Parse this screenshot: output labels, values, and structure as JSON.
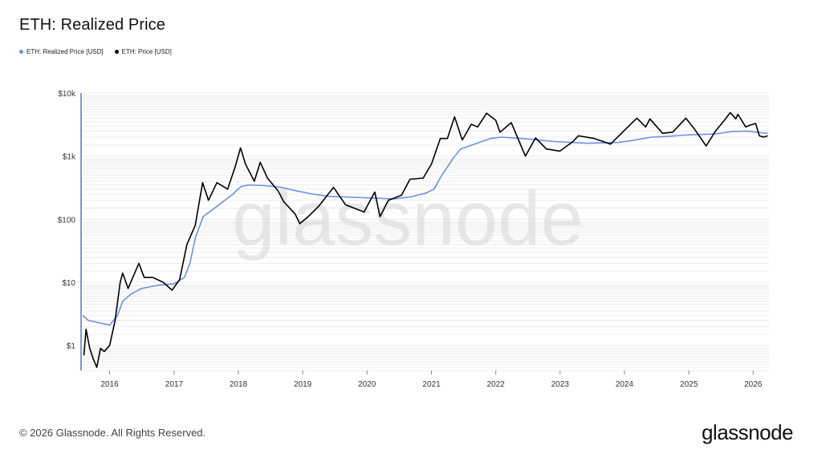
{
  "chart_data": {
    "type": "line",
    "title": "ETH: Realized Price",
    "y_scale": "log",
    "ylim": [
      0.4,
      10000
    ],
    "y_ticks": [
      {
        "value": 1,
        "label": "$1"
      },
      {
        "value": 10,
        "label": "$10"
      },
      {
        "value": 100,
        "label": "$100"
      },
      {
        "value": 1000,
        "label": "$1k"
      },
      {
        "value": 10000,
        "label": "$10k"
      }
    ],
    "xlim": [
      "2015-08-01",
      "2026-04-01"
    ],
    "x_ticks": [
      "2016",
      "2017",
      "2018",
      "2019",
      "2020",
      "2021",
      "2022",
      "2023",
      "2024",
      "2025",
      "2026"
    ],
    "grid": true,
    "legend_position": "top-left",
    "series": [
      {
        "name": "ETH: Realized Price [USD]",
        "color": "#6f8fe0",
        "points": [
          [
            "2015-08-01",
            3.0
          ],
          [
            "2015-09-01",
            2.5
          ],
          [
            "2015-12-01",
            2.2
          ],
          [
            "2016-01-01",
            2.1
          ],
          [
            "2016-02-15",
            3.0
          ],
          [
            "2016-03-15",
            5.0
          ],
          [
            "2016-05-01",
            6.5
          ],
          [
            "2016-07-01",
            8.0
          ],
          [
            "2016-10-01",
            9.0
          ],
          [
            "2017-01-01",
            9.5
          ],
          [
            "2017-03-01",
            12
          ],
          [
            "2017-04-01",
            20
          ],
          [
            "2017-05-01",
            50
          ],
          [
            "2017-06-15",
            110
          ],
          [
            "2017-09-01",
            160
          ],
          [
            "2017-12-01",
            250
          ],
          [
            "2018-01-15",
            330
          ],
          [
            "2018-03-01",
            350
          ],
          [
            "2018-06-01",
            340
          ],
          [
            "2018-09-01",
            320
          ],
          [
            "2018-12-01",
            280
          ],
          [
            "2019-03-01",
            250
          ],
          [
            "2019-06-01",
            230
          ],
          [
            "2019-09-01",
            225
          ],
          [
            "2019-12-01",
            220
          ],
          [
            "2020-03-01",
            215
          ],
          [
            "2020-06-01",
            210
          ],
          [
            "2020-09-01",
            225
          ],
          [
            "2020-12-01",
            260
          ],
          [
            "2021-01-15",
            300
          ],
          [
            "2021-03-01",
            500
          ],
          [
            "2021-05-01",
            900
          ],
          [
            "2021-06-15",
            1300
          ],
          [
            "2021-09-01",
            1550
          ],
          [
            "2021-12-01",
            1900
          ],
          [
            "2022-02-01",
            2000
          ],
          [
            "2022-06-01",
            1900
          ],
          [
            "2022-09-01",
            1800
          ],
          [
            "2022-12-01",
            1700
          ],
          [
            "2023-06-01",
            1600
          ],
          [
            "2023-12-01",
            1650
          ],
          [
            "2024-03-01",
            1800
          ],
          [
            "2024-06-01",
            2000
          ],
          [
            "2024-09-01",
            2050
          ],
          [
            "2024-12-01",
            2150
          ],
          [
            "2025-03-01",
            2200
          ],
          [
            "2025-06-01",
            2250
          ],
          [
            "2025-09-01",
            2450
          ],
          [
            "2025-12-01",
            2500
          ],
          [
            "2026-02-15",
            2350
          ],
          [
            "2026-03-25",
            2300
          ]
        ]
      },
      {
        "name": "ETH: Price [USD]",
        "color": "#000000",
        "points": [
          [
            "2015-08-08",
            0.7
          ],
          [
            "2015-08-20",
            1.8
          ],
          [
            "2015-09-10",
            0.9
          ],
          [
            "2015-10-01",
            0.6
          ],
          [
            "2015-10-20",
            0.45
          ],
          [
            "2015-11-10",
            0.9
          ],
          [
            "2015-12-01",
            0.8
          ],
          [
            "2016-01-01",
            1.0
          ],
          [
            "2016-02-01",
            2.5
          ],
          [
            "2016-03-01",
            10
          ],
          [
            "2016-03-15",
            14
          ],
          [
            "2016-04-15",
            8
          ],
          [
            "2016-06-15",
            20
          ],
          [
            "2016-07-15",
            12
          ],
          [
            "2016-09-01",
            12
          ],
          [
            "2016-11-01",
            10
          ],
          [
            "2016-12-20",
            7.5
          ],
          [
            "2017-02-01",
            11
          ],
          [
            "2017-03-15",
            40
          ],
          [
            "2017-05-01",
            80
          ],
          [
            "2017-06-12",
            380
          ],
          [
            "2017-07-15",
            200
          ],
          [
            "2017-09-01",
            380
          ],
          [
            "2017-11-01",
            300
          ],
          [
            "2017-12-15",
            700
          ],
          [
            "2018-01-13",
            1350
          ],
          [
            "2018-02-10",
            750
          ],
          [
            "2018-04-01",
            400
          ],
          [
            "2018-05-05",
            800
          ],
          [
            "2018-06-15",
            450
          ],
          [
            "2018-08-15",
            280
          ],
          [
            "2018-09-15",
            190
          ],
          [
            "2018-11-20",
            120
          ],
          [
            "2018-12-15",
            85
          ],
          [
            "2019-02-01",
            110
          ],
          [
            "2019-04-01",
            160
          ],
          [
            "2019-06-25",
            320
          ],
          [
            "2019-09-01",
            170
          ],
          [
            "2019-12-15",
            130
          ],
          [
            "2020-02-14",
            270
          ],
          [
            "2020-03-15",
            110
          ],
          [
            "2020-05-01",
            200
          ],
          [
            "2020-07-15",
            240
          ],
          [
            "2020-09-01",
            430
          ],
          [
            "2020-11-15",
            450
          ],
          [
            "2021-01-01",
            750
          ],
          [
            "2021-02-20",
            1900
          ],
          [
            "2021-04-01",
            1900
          ],
          [
            "2021-05-12",
            4200
          ],
          [
            "2021-06-25",
            1800
          ],
          [
            "2021-08-15",
            3200
          ],
          [
            "2021-09-20",
            2900
          ],
          [
            "2021-11-10",
            4800
          ],
          [
            "2022-01-01",
            3700
          ],
          [
            "2022-01-25",
            2400
          ],
          [
            "2022-03-30",
            3400
          ],
          [
            "2022-06-18",
            1000
          ],
          [
            "2022-08-15",
            1950
          ],
          [
            "2022-10-15",
            1300
          ],
          [
            "2022-12-31",
            1200
          ],
          [
            "2023-03-15",
            1700
          ],
          [
            "2023-04-15",
            2100
          ],
          [
            "2023-07-15",
            1900
          ],
          [
            "2023-10-15",
            1550
          ],
          [
            "2023-12-15",
            2300
          ],
          [
            "2024-03-12",
            4000
          ],
          [
            "2024-05-01",
            2900
          ],
          [
            "2024-05-25",
            3900
          ],
          [
            "2024-08-05",
            2300
          ],
          [
            "2024-10-01",
            2400
          ],
          [
            "2024-12-15",
            4000
          ],
          [
            "2025-02-01",
            2700
          ],
          [
            "2025-04-09",
            1450
          ],
          [
            "2025-06-01",
            2500
          ],
          [
            "2025-07-15",
            3500
          ],
          [
            "2025-08-24",
            4900
          ],
          [
            "2025-09-25",
            3900
          ],
          [
            "2025-10-06",
            4600
          ],
          [
            "2025-11-20",
            2900
          ],
          [
            "2025-12-15",
            3100
          ],
          [
            "2026-01-15",
            3300
          ],
          [
            "2026-02-05",
            2100
          ],
          [
            "2026-03-01",
            2000
          ],
          [
            "2026-03-25",
            2100
          ]
        ]
      }
    ]
  },
  "watermark": "glassnode",
  "footer": {
    "copyright": "© 2026 Glassnode. All Rights Reserved.",
    "logo": "glassnode"
  }
}
